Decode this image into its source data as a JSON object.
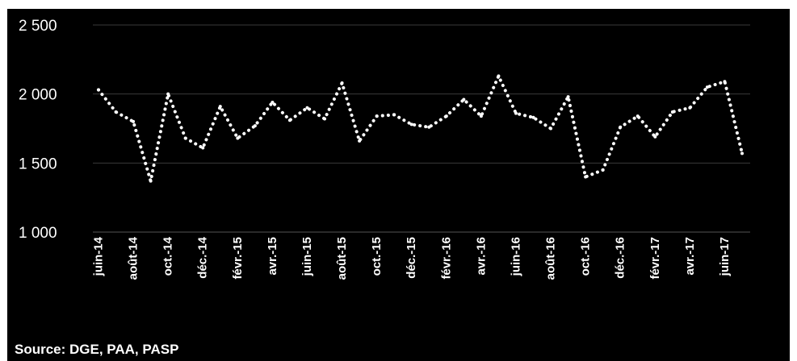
{
  "colors": {
    "background": "#000000",
    "line": "#ffffff",
    "grid": "#3a3a3a",
    "text": "#ffffff"
  },
  "source": "Source: DGE, PAA, PASP",
  "chart_data": {
    "type": "line",
    "title": "",
    "xlabel": "",
    "ylabel": "",
    "ylim": [
      1000,
      2500
    ],
    "yticks": [
      {
        "value": 1000,
        "label": "1 000"
      },
      {
        "value": 1500,
        "label": "1 500"
      },
      {
        "value": 2000,
        "label": "2 000"
      },
      {
        "value": 2500,
        "label": "2 500"
      }
    ],
    "xtick_labels": [
      {
        "index": 0,
        "label": "juin-14"
      },
      {
        "index": 2,
        "label": "août-14"
      },
      {
        "index": 4,
        "label": "oct.-14"
      },
      {
        "index": 6,
        "label": "déc.-14"
      },
      {
        "index": 8,
        "label": "févr.-15"
      },
      {
        "index": 10,
        "label": "avr.-15"
      },
      {
        "index": 12,
        "label": "juin-15"
      },
      {
        "index": 14,
        "label": "août-15"
      },
      {
        "index": 16,
        "label": "oct.-15"
      },
      {
        "index": 18,
        "label": "déc.-15"
      },
      {
        "index": 20,
        "label": "févr.-16"
      },
      {
        "index": 22,
        "label": "avr.-16"
      },
      {
        "index": 24,
        "label": "juin-16"
      },
      {
        "index": 26,
        "label": "août-16"
      },
      {
        "index": 28,
        "label": "oct.-16"
      },
      {
        "index": 30,
        "label": "déc.-16"
      },
      {
        "index": 32,
        "label": "févr.-17"
      },
      {
        "index": 34,
        "label": "avr.-17"
      },
      {
        "index": 36,
        "label": "juin-17"
      }
    ],
    "line_style": "dotted",
    "grid": true,
    "legend": "none",
    "series": [
      {
        "values": [
          2030,
          1870,
          1800,
          1370,
          2000,
          1680,
          1610,
          1910,
          1680,
          1770,
          1940,
          1810,
          1900,
          1820,
          2080,
          1660,
          1840,
          1850,
          1780,
          1760,
          1840,
          1960,
          1840,
          2130,
          1860,
          1830,
          1750,
          1980,
          1400,
          1450,
          1760,
          1840,
          1690,
          1870,
          1900,
          2050,
          2090,
          1570
        ]
      }
    ]
  }
}
